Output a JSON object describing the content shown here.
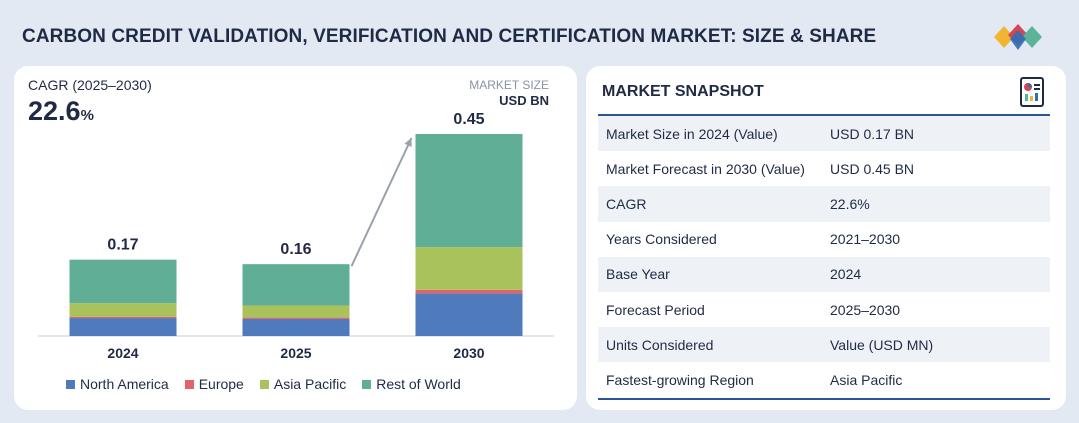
{
  "title": "CARBON CREDIT VALIDATION, VERIFICATION AND CERTIFICATION MARKET: SIZE & SHARE",
  "logo": {
    "icon": "diamond-logo-icon",
    "colors": [
      "#2f6eb5",
      "#d64550",
      "#f2b531",
      "#5bb39a"
    ]
  },
  "cagr": {
    "label": "CAGR (2025–2030)",
    "value": "22.6",
    "unit": "%"
  },
  "market_size": {
    "label": "MARKET SIZE",
    "unit": "USD BN"
  },
  "chart_data": {
    "type": "bar",
    "stacked": true,
    "categories": [
      "2024",
      "2025",
      "2030"
    ],
    "totals": [
      "0.17",
      "0.16",
      "0.45"
    ],
    "series": [
      {
        "name": "North America",
        "color": "#4f7bbd",
        "values": [
          0.04,
          0.038,
          0.095
        ]
      },
      {
        "name": "Europe",
        "color": "#e06468",
        "values": [
          0.003,
          0.003,
          0.008
        ]
      },
      {
        "name": "Asia Pacific",
        "color": "#a9c25c",
        "values": [
          0.03,
          0.027,
          0.095
        ]
      },
      {
        "name": "Rest of World",
        "color": "#5fae95",
        "values": [
          0.097,
          0.092,
          0.252
        ]
      }
    ],
    "ylim": [
      0,
      0.45
    ],
    "annotation": "growth-arrow 2025 to 2030"
  },
  "snapshot": {
    "title": "MARKET SNAPSHOT",
    "icon": "report-document-icon",
    "rows": [
      {
        "label": "Market Size in 2024 (Value)",
        "value": "USD 0.17 BN"
      },
      {
        "label": "Market Forecast in 2030 (Value)",
        "value": "USD 0.45 BN"
      },
      {
        "label": "CAGR",
        "value": "22.6%"
      },
      {
        "label": "Years Considered",
        "value": "2021–2030"
      },
      {
        "label": "Base Year",
        "value": "2024"
      },
      {
        "label": "Forecast Period",
        "value": "2025–2030"
      },
      {
        "label": "Units Considered",
        "value": "Value (USD MN)"
      },
      {
        "label": "Fastest-growing Region",
        "value": "Asia Pacific"
      }
    ],
    "rule_color": "#2a5597"
  }
}
